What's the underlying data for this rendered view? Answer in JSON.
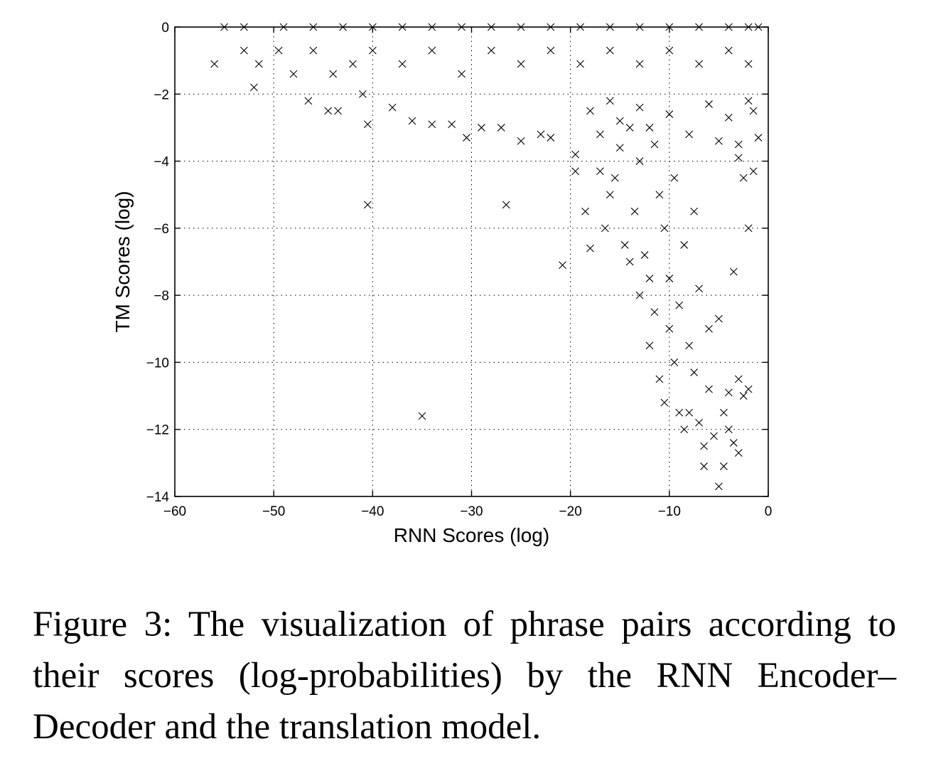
{
  "caption": "Figure 3: The visualization of phrase pairs according to their scores (log-probabilities) by the RNN Encoder–Decoder and the translation model.",
  "chart_data": {
    "type": "scatter",
    "title": "",
    "xlabel": "RNN Scores (log)",
    "ylabel": "TM Scores (log)",
    "xlim": [
      -60,
      0
    ],
    "ylim": [
      -14,
      0
    ],
    "xticks": [
      -60,
      -50,
      -40,
      -30,
      -20,
      -10,
      0
    ],
    "yticks": [
      -14,
      -12,
      -10,
      -8,
      -6,
      -4,
      -2,
      0
    ],
    "xtick_labels": [
      "−60",
      "−50",
      "−40",
      "−30",
      "−20",
      "−10",
      "0"
    ],
    "ytick_labels": [
      "−14",
      "−12",
      "−10",
      "−8",
      "−6",
      "−4",
      "−2",
      "0"
    ],
    "grid": true,
    "marker": "x",
    "marker_color": "#000000",
    "series": [
      {
        "points": [
          [
            -55,
            0
          ],
          [
            -53,
            0
          ],
          [
            -49,
            0
          ],
          [
            -46,
            0
          ],
          [
            -43,
            0
          ],
          [
            -40,
            0
          ],
          [
            -37,
            0
          ],
          [
            -34,
            0
          ],
          [
            -31,
            0
          ],
          [
            -28,
            0
          ],
          [
            -25,
            0
          ],
          [
            -22,
            0
          ],
          [
            -19,
            0
          ],
          [
            -16,
            0
          ],
          [
            -13,
            0
          ],
          [
            -10,
            0
          ],
          [
            -7,
            0
          ],
          [
            -4,
            0
          ],
          [
            -2,
            0
          ],
          [
            -1,
            0
          ],
          [
            -56,
            -1.1
          ],
          [
            -53,
            -0.7
          ],
          [
            -51.5,
            -1.1
          ],
          [
            -49.5,
            -0.7
          ],
          [
            -48,
            -1.4
          ],
          [
            -46,
            -0.7
          ],
          [
            -44,
            -1.4
          ],
          [
            -42,
            -1.1
          ],
          [
            -40,
            -0.7
          ],
          [
            -37,
            -1.1
          ],
          [
            -34,
            -0.7
          ],
          [
            -31,
            -1.4
          ],
          [
            -28,
            -0.7
          ],
          [
            -25,
            -1.1
          ],
          [
            -22,
            -0.7
          ],
          [
            -19,
            -1.1
          ],
          [
            -16,
            -0.7
          ],
          [
            -13,
            -1.1
          ],
          [
            -10,
            -0.7
          ],
          [
            -7,
            -1.1
          ],
          [
            -4,
            -0.7
          ],
          [
            -2,
            -1.1
          ],
          [
            -52,
            -1.8
          ],
          [
            -46.5,
            -2.2
          ],
          [
            -44.5,
            -2.5
          ],
          [
            -43.5,
            -2.5
          ],
          [
            -41,
            -2.0
          ],
          [
            -40.5,
            -2.9
          ],
          [
            -38,
            -2.4
          ],
          [
            -36,
            -2.8
          ],
          [
            -34,
            -2.9
          ],
          [
            -32,
            -2.9
          ],
          [
            -30.5,
            -3.3
          ],
          [
            -29,
            -3.0
          ],
          [
            -27,
            -3.0
          ],
          [
            -25,
            -3.4
          ],
          [
            -23,
            -3.2
          ],
          [
            -22,
            -3.3
          ],
          [
            -40.5,
            -5.3
          ],
          [
            -26.5,
            -5.3
          ],
          [
            -20.8,
            -7.1
          ],
          [
            -35,
            -11.6
          ],
          [
            -19.5,
            -3.8
          ],
          [
            -19.5,
            -4.3
          ],
          [
            -18.5,
            -5.5
          ],
          [
            -18,
            -6.6
          ],
          [
            -17,
            -4.3
          ],
          [
            -16.5,
            -6.0
          ],
          [
            -16,
            -5.0
          ],
          [
            -15.5,
            -4.5
          ],
          [
            -15,
            -3.6
          ],
          [
            -14.5,
            -6.5
          ],
          [
            -14,
            -3.0
          ],
          [
            -14,
            -7.0
          ],
          [
            -13.5,
            -5.5
          ],
          [
            -13,
            -8.0
          ],
          [
            -13,
            -4.0
          ],
          [
            -12.5,
            -6.8
          ],
          [
            -12,
            -7.5
          ],
          [
            -12,
            -9.5
          ],
          [
            -11.5,
            -3.5
          ],
          [
            -11.5,
            -8.5
          ],
          [
            -11,
            -5.0
          ],
          [
            -11,
            -10.5
          ],
          [
            -10.5,
            -6.0
          ],
          [
            -10.5,
            -11.2
          ],
          [
            -10,
            -7.5
          ],
          [
            -10,
            -9.0
          ],
          [
            -9.5,
            -4.5
          ],
          [
            -9.5,
            -10.0
          ],
          [
            -9,
            -8.3
          ],
          [
            -9,
            -11.5
          ],
          [
            -8.5,
            -6.5
          ],
          [
            -8.5,
            -12.0
          ],
          [
            -8,
            -9.5
          ],
          [
            -8,
            -11.5
          ],
          [
            -7.5,
            -5.5
          ],
          [
            -7.5,
            -10.3
          ],
          [
            -7,
            -7.8
          ],
          [
            -7,
            -11.8
          ],
          [
            -6.5,
            -12.5
          ],
          [
            -6.5,
            -13.1
          ],
          [
            -6,
            -9.0
          ],
          [
            -6,
            -10.8
          ],
          [
            -5.5,
            -12.2
          ],
          [
            -5,
            -13.7
          ],
          [
            -5,
            -8.7
          ],
          [
            -4.5,
            -13.1
          ],
          [
            -4.5,
            -11.5
          ],
          [
            -4,
            -10.9
          ],
          [
            -4,
            -12.0
          ],
          [
            -3.5,
            -12.4
          ],
          [
            -3,
            -12.7
          ],
          [
            -3,
            -10.5
          ],
          [
            -2.5,
            -11.0
          ],
          [
            -2,
            -10.8
          ],
          [
            -3.5,
            -7.3
          ],
          [
            -1.5,
            -4.3
          ],
          [
            -2,
            -6.0
          ],
          [
            -2.5,
            -4.5
          ],
          [
            -3,
            -3.5
          ],
          [
            -1.5,
            -2.5
          ],
          [
            -1,
            -3.3
          ],
          [
            -18,
            -2.5
          ],
          [
            -17,
            -3.2
          ],
          [
            -16,
            -2.2
          ],
          [
            -15,
            -2.8
          ],
          [
            -13,
            -2.4
          ],
          [
            -12,
            -3.0
          ],
          [
            -10,
            -2.6
          ],
          [
            -8,
            -3.2
          ],
          [
            -6,
            -2.3
          ],
          [
            -5,
            -3.4
          ],
          [
            -4,
            -2.7
          ],
          [
            -3,
            -3.9
          ],
          [
            -2,
            -2.2
          ]
        ]
      }
    ]
  }
}
